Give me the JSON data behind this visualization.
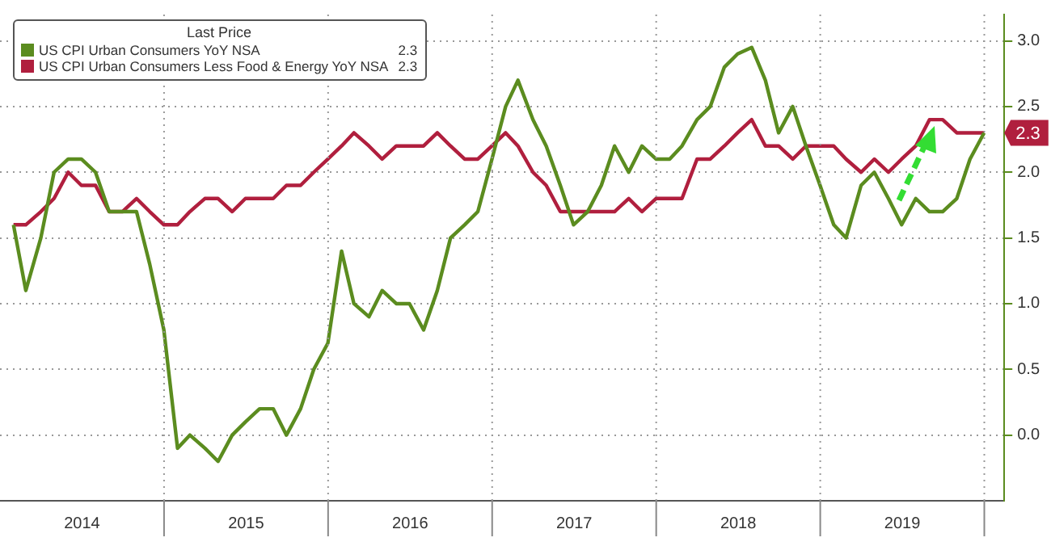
{
  "chart_data": {
    "type": "line",
    "legend_title": "Last Price",
    "x": [
      "2014-01-31",
      "2014-02-28",
      "2014-03-31",
      "2014-04-30",
      "2014-05-31",
      "2014-06-30",
      "2014-07-31",
      "2014-08-31",
      "2014-09-30",
      "2014-10-31",
      "2014-11-30",
      "2014-12-31",
      "2015-01-31",
      "2015-02-28",
      "2015-03-31",
      "2015-04-30",
      "2015-05-31",
      "2015-06-30",
      "2015-07-31",
      "2015-08-31",
      "2015-09-30",
      "2015-10-31",
      "2015-11-30",
      "2015-12-31",
      "2016-01-31",
      "2016-02-28",
      "2016-03-31",
      "2016-04-30",
      "2016-05-31",
      "2016-06-30",
      "2016-07-31",
      "2016-08-31",
      "2016-09-30",
      "2016-10-31",
      "2016-11-30",
      "2016-12-31",
      "2017-01-31",
      "2017-02-28",
      "2017-03-31",
      "2017-04-30",
      "2017-05-31",
      "2017-06-30",
      "2017-07-31",
      "2017-08-31",
      "2017-09-30",
      "2017-10-31",
      "2017-11-30",
      "2017-12-31",
      "2018-01-31",
      "2018-02-28",
      "2018-03-31",
      "2018-04-30",
      "2018-05-31",
      "2018-06-30",
      "2018-07-31",
      "2018-08-31",
      "2018-09-30",
      "2018-10-31",
      "2018-11-30",
      "2018-12-31",
      "2019-01-31",
      "2019-02-28",
      "2019-03-31",
      "2019-04-30",
      "2019-05-31",
      "2019-06-30",
      "2019-07-31",
      "2019-08-31",
      "2019-09-30",
      "2019-10-31",
      "2019-11-30",
      "2019-12-31"
    ],
    "series": [
      {
        "name": "US CPI Urban Consumers YoY NSA",
        "color": "#5b8c1f",
        "values": [
          1.6,
          1.1,
          1.5,
          2.0,
          2.1,
          2.1,
          2.0,
          1.7,
          1.7,
          1.7,
          1.3,
          0.8,
          -0.1,
          0.0,
          -0.1,
          -0.2,
          0.0,
          0.1,
          0.2,
          0.2,
          0.0,
          0.2,
          0.5,
          0.7,
          1.4,
          1.0,
          0.9,
          1.1,
          1.0,
          1.0,
          0.8,
          1.1,
          1.5,
          1.6,
          1.7,
          2.1,
          2.5,
          2.7,
          2.4,
          2.2,
          1.9,
          1.6,
          1.7,
          1.9,
          2.2,
          2.0,
          2.2,
          2.1,
          2.1,
          2.2,
          2.4,
          2.5,
          2.8,
          2.9,
          2.95,
          2.7,
          2.3,
          2.5,
          2.2,
          1.9,
          1.6,
          1.5,
          1.9,
          2.0,
          1.8,
          1.6,
          1.8,
          1.7,
          1.7,
          1.8,
          2.1,
          2.3
        ]
      },
      {
        "name": "US CPI Urban Consumers Less Food & Energy YoY NSA",
        "color": "#b01f3e",
        "values": [
          1.6,
          1.6,
          1.7,
          1.8,
          2.0,
          1.9,
          1.9,
          1.7,
          1.7,
          1.8,
          1.7,
          1.6,
          1.6,
          1.7,
          1.8,
          1.8,
          1.7,
          1.8,
          1.8,
          1.8,
          1.9,
          1.9,
          2.0,
          2.1,
          2.2,
          2.3,
          2.2,
          2.1,
          2.2,
          2.2,
          2.2,
          2.3,
          2.2,
          2.1,
          2.1,
          2.2,
          2.3,
          2.2,
          2.0,
          1.9,
          1.7,
          1.7,
          1.7,
          1.7,
          1.7,
          1.8,
          1.7,
          1.8,
          1.8,
          1.8,
          2.1,
          2.1,
          2.2,
          2.3,
          2.4,
          2.2,
          2.2,
          2.1,
          2.2,
          2.2,
          2.2,
          2.1,
          2.0,
          2.1,
          2.0,
          2.1,
          2.2,
          2.4,
          2.4,
          2.3,
          2.3,
          2.3
        ]
      }
    ],
    "annotations": [
      {
        "text": "2.3",
        "x": "2019-12-31",
        "y": 2.3
      }
    ],
    "xlim": [
      "2014-01-01",
      "2020-02-15"
    ],
    "xticks": [
      {
        "value": "2014-07-01",
        "label": "2014"
      },
      {
        "value": "2015-01-01",
        "label": null
      },
      {
        "value": "2015-07-01",
        "label": "2015"
      },
      {
        "value": "2016-01-01",
        "label": null
      },
      {
        "value": "2016-07-01",
        "label": "2016"
      },
      {
        "value": "2017-01-01",
        "label": null
      },
      {
        "value": "2017-07-01",
        "label": "2017"
      },
      {
        "value": "2018-01-01",
        "label": null
      },
      {
        "value": "2018-07-01",
        "label": "2018"
      },
      {
        "value": "2019-01-01",
        "label": null
      },
      {
        "value": "2019-07-01",
        "label": "2019"
      },
      {
        "value": "2020-01-01",
        "label": null
      }
    ],
    "ylim": [
      -0.5,
      3.2
    ],
    "yticks": [
      {
        "value": 0,
        "label": "0.0"
      },
      {
        "value": 0.5,
        "label": "0.5"
      },
      {
        "value": 1,
        "label": "1.0"
      },
      {
        "value": 1.5,
        "label": "1.5"
      },
      {
        "value": 2,
        "label": "2.0"
      },
      {
        "value": 2.5,
        "label": "2.5"
      },
      {
        "value": 3,
        "label": "3.0"
      }
    ],
    "grid": true,
    "legend": "top left",
    "marker": "none",
    "line_style": "solid"
  }
}
